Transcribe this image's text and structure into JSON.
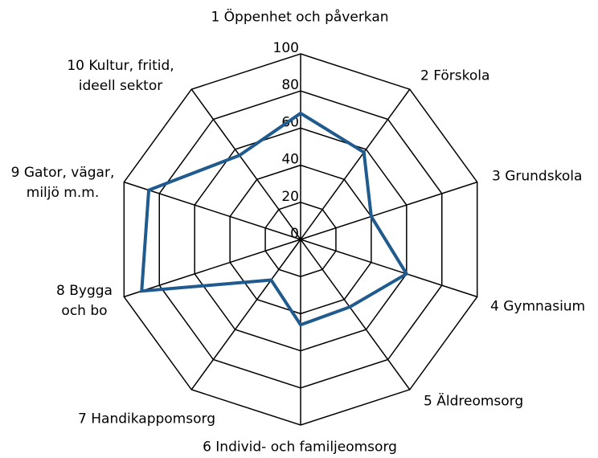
{
  "chart_data": {
    "type": "radar",
    "categories": [
      "1 Öppenhet och påverkan",
      "2 Förskola",
      "3 Grundskola",
      "4 Gymnasium",
      "5 Äldreomsorg",
      "6 Individ- och familjeomsorg",
      "7 Handikappomsorg",
      "8 Bygga\noch bo",
      "9 Gator, vägar,\nmiljö m.m.",
      "10 Kultur, fritid,\nideell sektor"
    ],
    "series": [
      {
        "name": "",
        "color": "#1f5b8e",
        "values": [
          68,
          58,
          40,
          60,
          45,
          46,
          27,
          90,
          86,
          56
        ]
      }
    ],
    "ylim": [
      0,
      100
    ],
    "yticks": [
      0,
      20,
      40,
      60,
      80,
      100
    ],
    "grid": true
  }
}
